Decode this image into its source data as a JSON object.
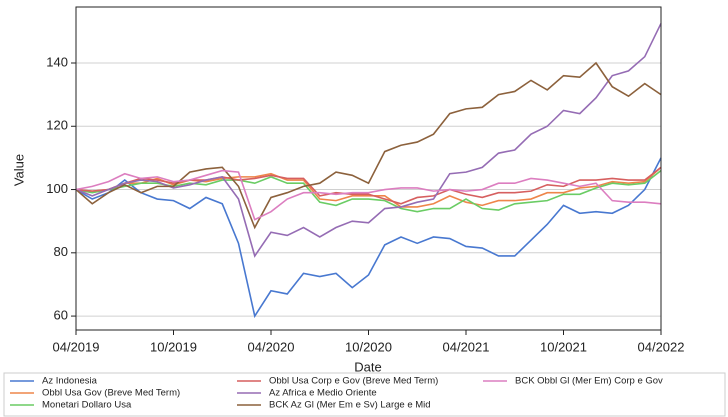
{
  "chart_data": {
    "type": "line",
    "x_label": "Date",
    "y_label": "Value",
    "x": [
      "2019-04",
      "2019-05",
      "2019-06",
      "2019-07",
      "2019-08",
      "2019-09",
      "2019-10",
      "2019-11",
      "2019-12",
      "2020-01",
      "2020-02",
      "2020-03",
      "2020-04",
      "2020-05",
      "2020-06",
      "2020-07",
      "2020-08",
      "2020-09",
      "2020-10",
      "2020-11",
      "2020-12",
      "2021-01",
      "2021-02",
      "2021-03",
      "2021-04",
      "2021-05",
      "2021-06",
      "2021-07",
      "2021-08",
      "2021-09",
      "2021-10",
      "2021-11",
      "2021-12",
      "2022-01",
      "2022-02",
      "2022-03",
      "2022-04"
    ],
    "xlim": [
      "2019-04",
      "2022-04"
    ],
    "xticks": [
      {
        "value": "2019-04",
        "label": "04/2019"
      },
      {
        "value": "2019-10",
        "label": "10/2019"
      },
      {
        "value": "2020-04",
        "label": "04/2020"
      },
      {
        "value": "2020-10",
        "label": "10/2020"
      },
      {
        "value": "2021-04",
        "label": "04/2021"
      },
      {
        "value": "2021-10",
        "label": "10/2021"
      },
      {
        "value": "2022-04",
        "label": "04/2022"
      }
    ],
    "ylim": [
      55.6,
      157.7
    ],
    "yticks": [
      60,
      80,
      100,
      120,
      140
    ],
    "grid": true,
    "legend": "bottom",
    "series": [
      {
        "name": "Az Indonesia",
        "color": "#4878d0",
        "values": [
          100,
          97,
          99,
          103,
          99,
          97,
          96.5,
          94,
          97.5,
          95.5,
          83,
          60,
          68,
          67,
          73.5,
          72.5,
          73.5,
          69,
          73,
          82.5,
          85,
          83,
          85,
          84.5,
          82,
          81.5,
          79,
          79,
          84,
          89,
          95,
          92.5,
          93,
          92.5,
          95,
          100,
          110
        ]
      },
      {
        "name": "Obbl Usa Gov (Breve Med Term)",
        "color": "#ee854a",
        "values": [
          100,
          99.5,
          100,
          102,
          102,
          103.5,
          101.5,
          103,
          102.5,
          103.5,
          104,
          104,
          105,
          103,
          103,
          97,
          96.5,
          98,
          98,
          98,
          94.5,
          94.5,
          95.5,
          98,
          96,
          95,
          96.5,
          96.5,
          97,
          99,
          99,
          100.5,
          101,
          102.5,
          102,
          102.5,
          107
        ]
      },
      {
        "name": "Monetari Dollaro Usa",
        "color": "#6acc64",
        "values": [
          100,
          99,
          100,
          101,
          102,
          102,
          101,
          102,
          101.5,
          103,
          103,
          102,
          104,
          102,
          102,
          96,
          95,
          97,
          97,
          96.5,
          94,
          93,
          94,
          94,
          97,
          94,
          93.5,
          95.5,
          96,
          96.5,
          98.5,
          98.5,
          100.5,
          102,
          101.5,
          102,
          106
        ]
      },
      {
        "name": "Obbl Usa Corp e Gov (Breve Med Term)",
        "color": "#d65f5f",
        "values": [
          100,
          99.5,
          100,
          102,
          103.5,
          103,
          102,
          103,
          103,
          104,
          103,
          103.5,
          104.5,
          103.5,
          103.5,
          98,
          99,
          98.5,
          98.5,
          97,
          95.5,
          97.5,
          98,
          100,
          98.5,
          97.5,
          99,
          99,
          99.5,
          101.5,
          101,
          103,
          103,
          103.5,
          103,
          103,
          107
        ]
      },
      {
        "name": "Az Africa e Medio Oriente",
        "color": "#956cb4",
        "values": [
          100,
          98,
          100,
          102,
          103,
          102.5,
          100.5,
          101.5,
          103,
          104,
          97,
          79,
          86.5,
          85.5,
          88,
          85,
          88,
          90,
          89.5,
          94,
          94.5,
          96,
          97,
          105,
          105.5,
          107,
          111.5,
          112.5,
          117.5,
          120,
          125,
          124,
          129,
          136,
          137.5,
          142,
          152.5
        ]
      },
      {
        "name": "BCK Az Gl (Mer Em e Sv) Large e Mid",
        "color": "#8c613c",
        "values": [
          100,
          95.5,
          99,
          101.5,
          99,
          101,
          101,
          105.5,
          106.5,
          107,
          101,
          88,
          97.5,
          99,
          101,
          102,
          105.5,
          104.5,
          102,
          112,
          114,
          115,
          117.5,
          124,
          125.5,
          126,
          130,
          131,
          134.5,
          131.5,
          136,
          135.5,
          140,
          132.5,
          129.5,
          133.5,
          130
        ]
      },
      {
        "name": "BCK Obbl Gl (Mer Em) Corp e Gov",
        "color": "#dc7ec0",
        "values": [
          100,
          101,
          102.5,
          105,
          103.5,
          104,
          102.5,
          103,
          104.5,
          106,
          105.5,
          90.5,
          93,
          97,
          99,
          99,
          98.5,
          99,
          99,
          100,
          100.5,
          100.5,
          99.5,
          100,
          99.5,
          100,
          102,
          102,
          103.5,
          103,
          102,
          101,
          102,
          96.5,
          96,
          96,
          95.5
        ]
      }
    ]
  }
}
